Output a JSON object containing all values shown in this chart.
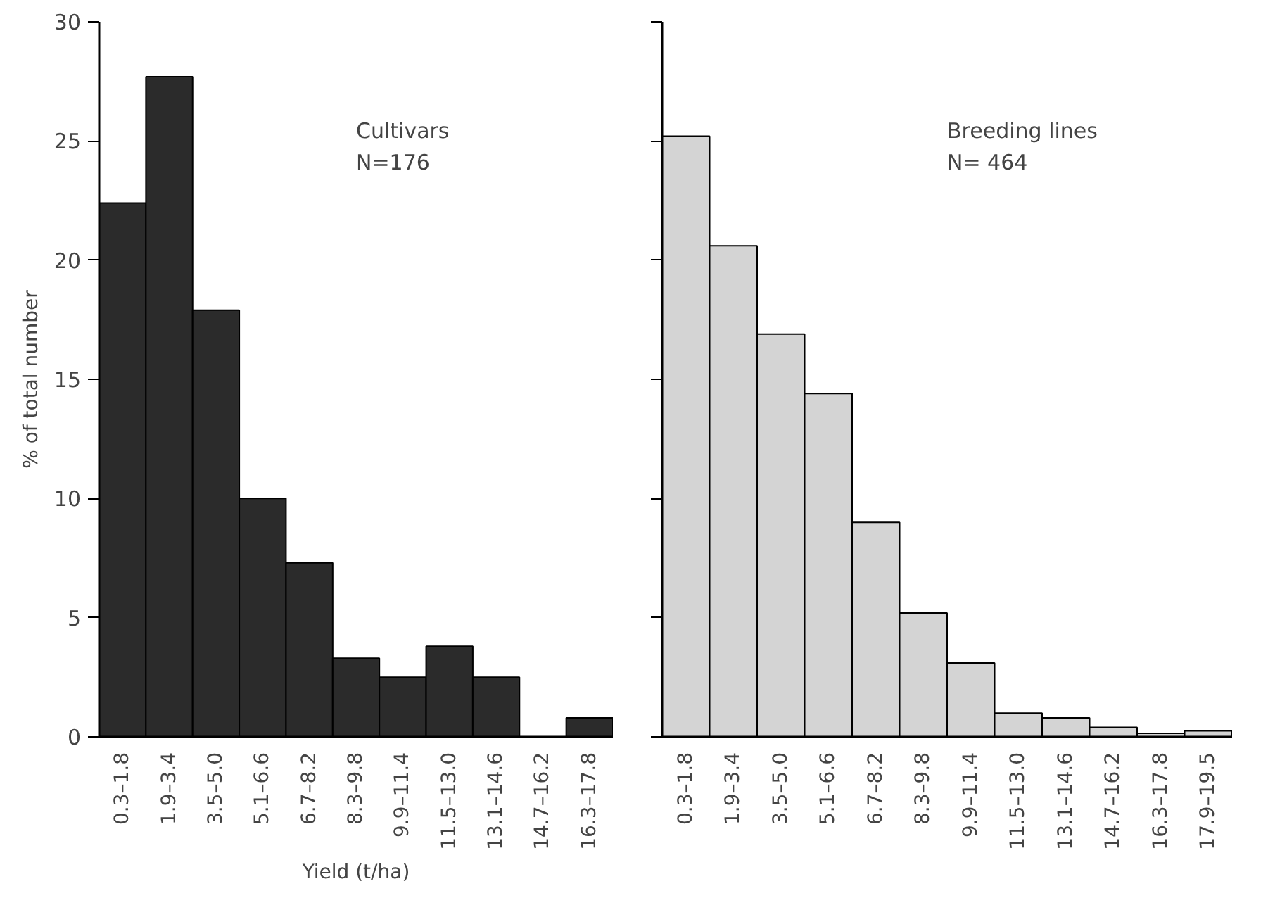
{
  "chart_data": [
    {
      "type": "bar",
      "categories": [
        "0.3–1.8",
        "1.9–3.4",
        "3.5–5.0",
        "5.1–6.6",
        "6.7–8.2",
        "8.3–9.8",
        "9.9–11.4",
        "11.5–13.0",
        "13.1–14.6",
        "14.7–16.2",
        "16.3–17.8"
      ],
      "values": [
        22.4,
        27.7,
        17.9,
        10.0,
        7.3,
        3.3,
        2.5,
        3.8,
        2.5,
        null,
        0.8
      ],
      "color": "#2b2b2b",
      "ylim": [
        0,
        30
      ],
      "yticks": [
        0,
        5,
        10,
        15,
        20,
        25,
        30
      ],
      "ylabel": "% of total number",
      "xlabel": "Yield (t/ha)",
      "annotations": [
        "Cultivars",
        "N=176"
      ],
      "grid": false
    },
    {
      "type": "bar",
      "categories": [
        "0.3–1.8",
        "1.9–3.4",
        "3.5–5.0",
        "5.1–6.6",
        "6.7–8.2",
        "8.3–9.8",
        "9.9–11.4",
        "11.5–13.0",
        "13.1–14.6",
        "14.7–16.2",
        "16.3–17.8",
        "17.9–19.5"
      ],
      "values": [
        25.2,
        20.6,
        16.9,
        14.4,
        9.0,
        5.2,
        3.1,
        1.0,
        0.8,
        0.4,
        0.15,
        0.25
      ],
      "color": "#d4d4d4",
      "ylim": [
        0,
        30
      ],
      "yticks": [
        0,
        5,
        10,
        15,
        20,
        25,
        30
      ],
      "tick_labels": "x",
      "annotations": [
        "Breeding lines",
        "N= 464"
      ],
      "grid": false
    }
  ]
}
